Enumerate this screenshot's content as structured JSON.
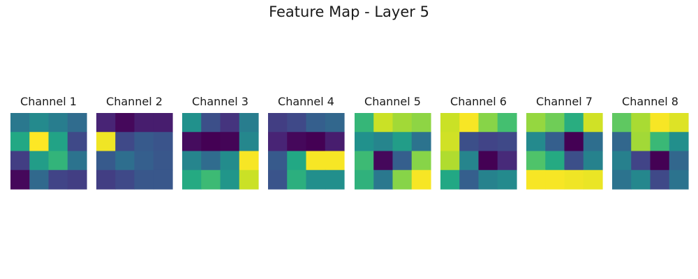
{
  "title": "Feature Map - Layer 5",
  "chart_data": {
    "type": "heatmap",
    "title": "Feature Map - Layer 5",
    "colormap": "viridis",
    "grid": false,
    "axes": "off",
    "panels": [
      {
        "name": "Channel 1",
        "values": [
          [
            0.4,
            0.47,
            0.42,
            0.35
          ],
          [
            0.6,
            1.0,
            0.58,
            0.22
          ],
          [
            0.18,
            0.55,
            0.65,
            0.38
          ],
          [
            0.02,
            0.34,
            0.2,
            0.18
          ]
        ]
      },
      {
        "name": "Channel 2",
        "values": [
          [
            0.1,
            0.02,
            0.08,
            0.08
          ],
          [
            0.98,
            0.22,
            0.28,
            0.26
          ],
          [
            0.28,
            0.36,
            0.3,
            0.27
          ],
          [
            0.18,
            0.22,
            0.27,
            0.27
          ]
        ]
      },
      {
        "name": "Channel 3",
        "values": [
          [
            0.5,
            0.24,
            0.15,
            0.42
          ],
          [
            0.03,
            0.0,
            0.01,
            0.46
          ],
          [
            0.45,
            0.35,
            0.48,
            0.99
          ],
          [
            0.61,
            0.68,
            0.52,
            0.92
          ]
        ]
      },
      {
        "name": "Channel 4",
        "values": [
          [
            0.18,
            0.22,
            0.3,
            0.33
          ],
          [
            0.1,
            0.02,
            0.0,
            0.08
          ],
          [
            0.28,
            0.6,
            0.99,
            0.99
          ],
          [
            0.26,
            0.63,
            0.49,
            0.49
          ]
        ]
      },
      {
        "name": "Channel 5",
        "values": [
          [
            0.66,
            0.92,
            0.86,
            0.83
          ],
          [
            0.5,
            0.45,
            0.55,
            0.38
          ],
          [
            0.68,
            0.02,
            0.3,
            0.82
          ],
          [
            0.64,
            0.4,
            0.82,
            0.99
          ]
        ]
      },
      {
        "name": "Channel 6",
        "values": [
          [
            0.92,
            0.99,
            0.82,
            0.7
          ],
          [
            0.93,
            0.24,
            0.2,
            0.22
          ],
          [
            0.88,
            0.45,
            0.0,
            0.12
          ],
          [
            0.6,
            0.3,
            0.44,
            0.47
          ]
        ]
      },
      {
        "name": "Channel 7",
        "values": [
          [
            0.84,
            0.78,
            0.62,
            0.93
          ],
          [
            0.47,
            0.3,
            0.0,
            0.36
          ],
          [
            0.72,
            0.61,
            0.24,
            0.44
          ],
          [
            0.99,
            0.99,
            0.98,
            0.97
          ]
        ]
      },
      {
        "name": "Channel 8",
        "values": [
          [
            0.75,
            0.87,
            0.99,
            0.95
          ],
          [
            0.33,
            0.86,
            0.67,
            0.49
          ],
          [
            0.43,
            0.2,
            0.0,
            0.33
          ],
          [
            0.38,
            0.46,
            0.22,
            0.38
          ]
        ]
      }
    ]
  }
}
